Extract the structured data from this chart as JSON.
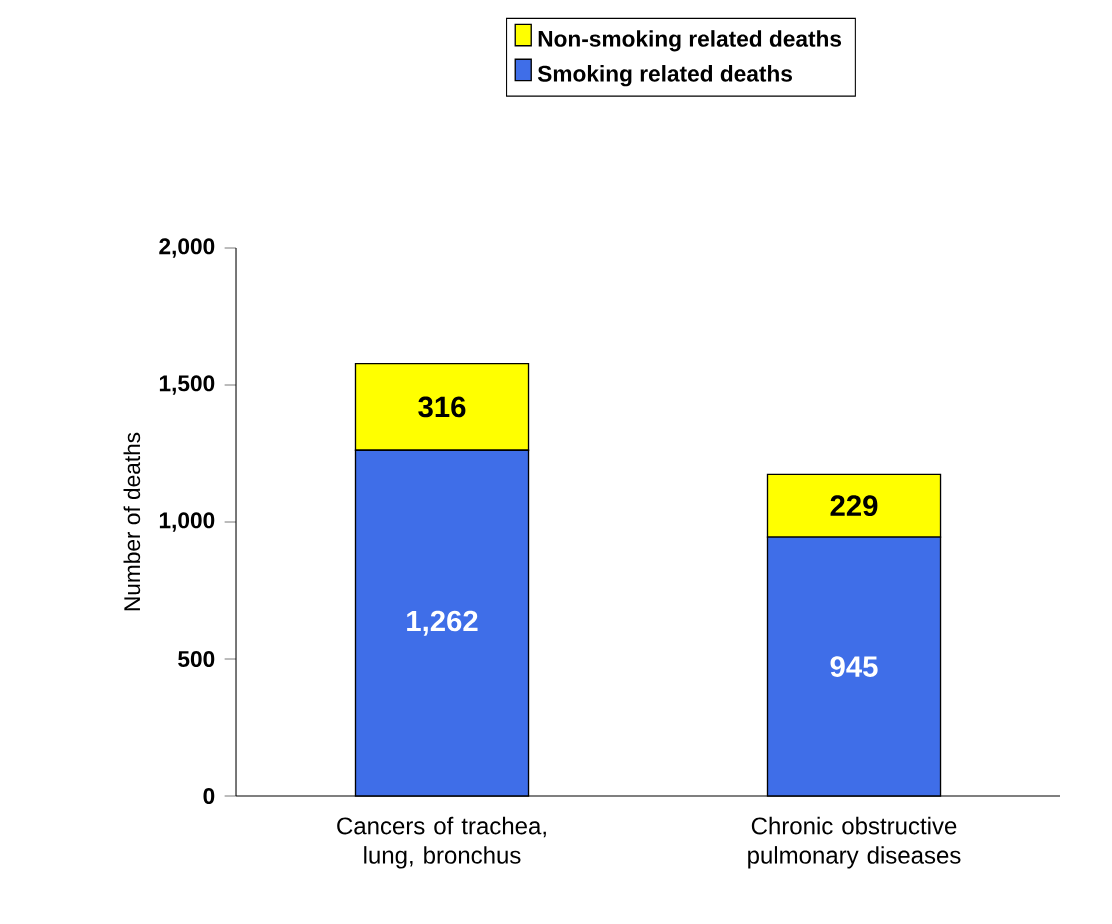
{
  "chart_data": {
    "type": "bar",
    "stacked": true,
    "ylabel": "Number of deaths",
    "categories": [
      "Cancers of trachea, lung, bronchus",
      "Chronic obstructive pulmonary diseases"
    ],
    "series": [
      {
        "name": "Smoking related deaths",
        "color": "#3f6ee8",
        "values": [
          1262,
          945
        ],
        "value_labels": [
          "1,262",
          "945"
        ]
      },
      {
        "name": "Non-smoking related deaths",
        "color": "#ffff00",
        "values": [
          316,
          229
        ],
        "value_labels": [
          "316",
          "229"
        ]
      }
    ],
    "ylim": [
      0,
      2000
    ],
    "yticks": [
      0,
      500,
      {
        "value": 1000,
        "label": "1,000"
      },
      {
        "value": 1500,
        "label": "1,500"
      },
      {
        "value": 2000,
        "label": "2,000"
      }
    ],
    "legend": "top",
    "grid": false
  }
}
